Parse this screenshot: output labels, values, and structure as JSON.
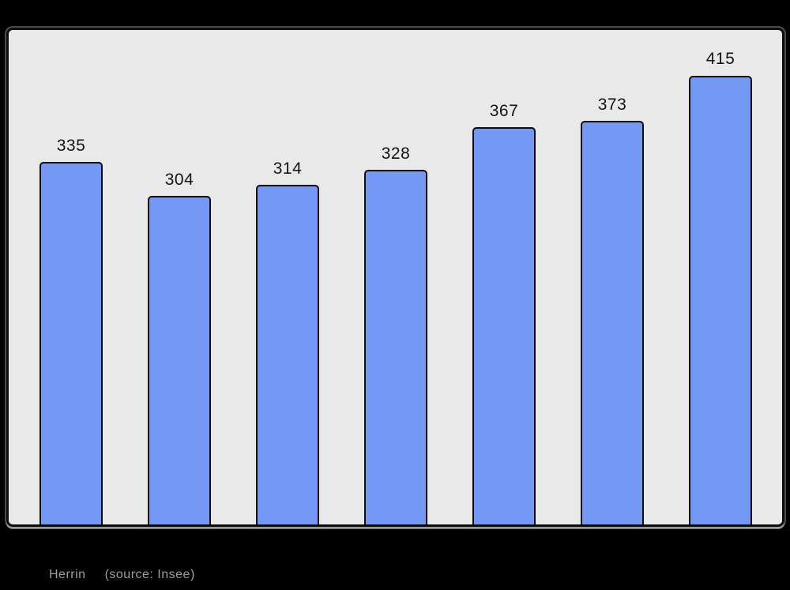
{
  "caption": {
    "title": "Herrin",
    "source": "(source: Insee)",
    "color": "#9e9e9e"
  },
  "chart_data": {
    "type": "bar",
    "values": [
      335,
      304,
      314,
      328,
      367,
      373,
      415
    ],
    "data_labels": [
      335,
      304,
      314,
      328,
      367,
      373,
      415
    ],
    "title": "",
    "xlabel": "",
    "ylabel": "",
    "ylim": [
      0,
      457
    ],
    "grid": false,
    "legend": false,
    "axis_tick_labels_visible": false,
    "bar_color": "#7499f4",
    "bar_border_color": "#0d0d0d",
    "plot_background": "#e9e9e9",
    "frame_border_color": "#0d0d0d",
    "page_background": "#000000",
    "value_label_color": "#141414"
  }
}
